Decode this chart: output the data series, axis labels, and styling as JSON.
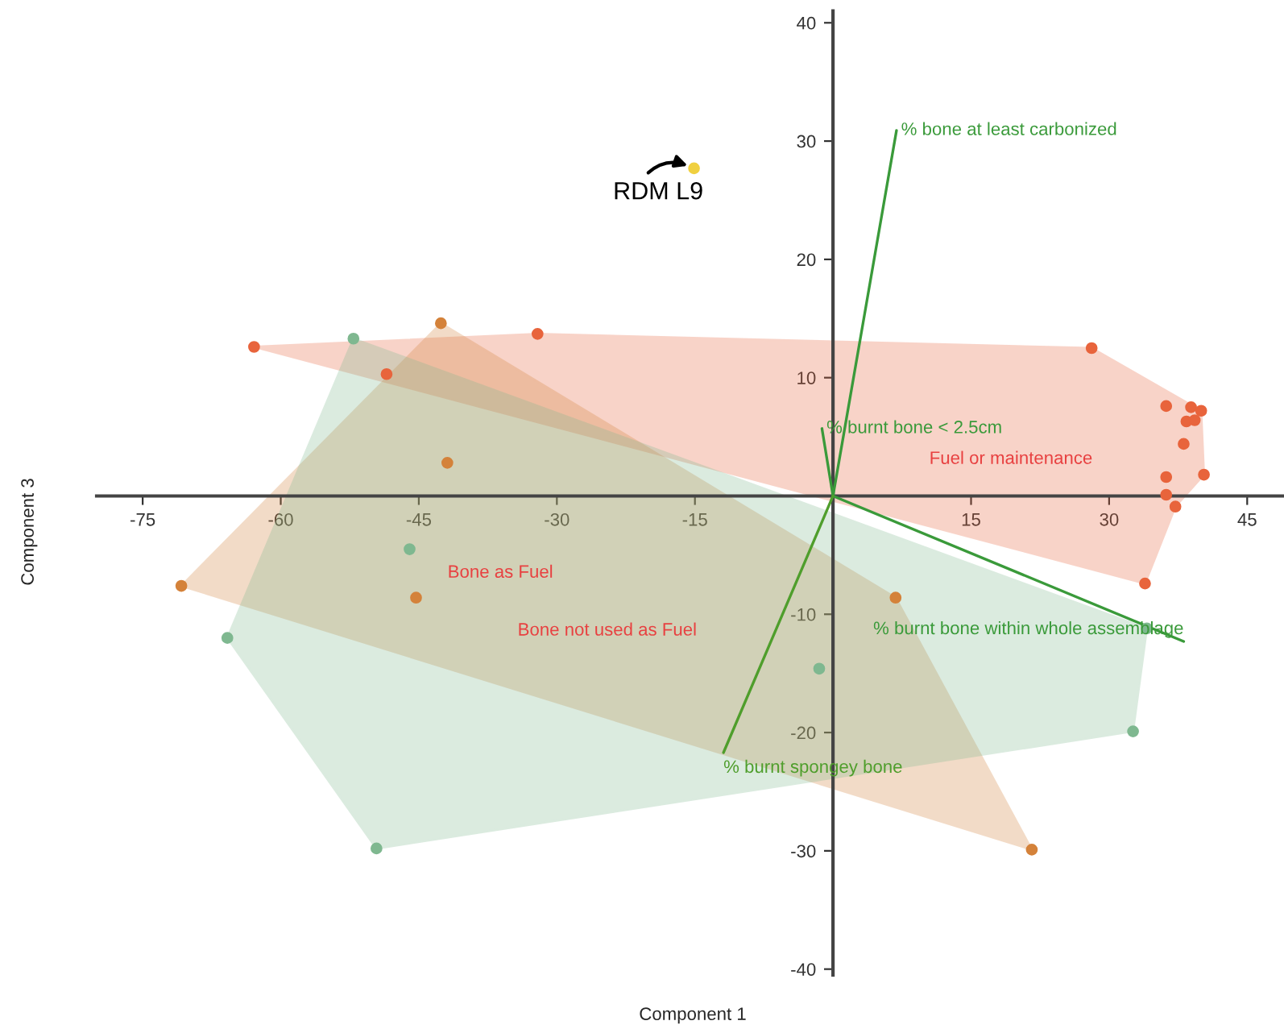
{
  "chart_data": {
    "type": "scatter",
    "xlabel": "Component 1",
    "ylabel": "Component 3",
    "xlim": [
      -80,
      49
    ],
    "ylim": [
      -40.5,
      41
    ],
    "xticks": [
      -75,
      -60,
      -45,
      -30,
      -15,
      15,
      30,
      45
    ],
    "yticks": [
      -40,
      -30,
      -20,
      -10,
      10,
      20,
      30,
      40
    ],
    "grid": false,
    "legend": false,
    "series": [
      {
        "type": "area",
        "color": "#e8643c",
        "x": [
          -62.9,
          -32.1,
          28.1,
          40.0,
          40.3,
          37.2,
          33.9
        ],
        "values": [
          12.6,
          13.7,
          12.5,
          7.2,
          1.8,
          -0.9,
          -7.4
        ]
      },
      {
        "type": "area",
        "color": "#d4823a",
        "x": [
          -42.6,
          6.8,
          21.6,
          -70.8
        ],
        "values": [
          14.6,
          -8.6,
          -29.9,
          -7.6
        ]
      },
      {
        "type": "area",
        "color": "#7fb890",
        "x": [
          -52.1,
          34.1,
          32.6,
          -49.6,
          -65.8
        ],
        "values": [
          13.3,
          -11.2,
          -19.9,
          -29.8,
          -12.0
        ]
      },
      {
        "marker": "circle",
        "color": "#e8643c",
        "x": [
          -62.9,
          -32.1,
          -48.5,
          28.1,
          36.2,
          38.9,
          40.0,
          38.4,
          39.3,
          38.1,
          40.3,
          36.2,
          36.2,
          37.2,
          33.9
        ],
        "values": [
          12.6,
          13.7,
          10.3,
          12.5,
          7.6,
          7.5,
          7.2,
          6.3,
          6.4,
          4.4,
          1.8,
          1.6,
          0.1,
          -0.9,
          -7.4
        ]
      },
      {
        "marker": "circle",
        "color": "#d4823a",
        "x": [
          -42.6,
          -41.9,
          -70.8,
          -45.3,
          6.8,
          21.6
        ],
        "values": [
          14.6,
          2.8,
          -7.6,
          -8.6,
          -8.6,
          -29.9
        ]
      },
      {
        "marker": "circle",
        "color": "#7fb890",
        "x": [
          -52.1,
          -46.0,
          -65.8,
          -49.6,
          -1.5,
          32.6,
          34.1
        ],
        "values": [
          13.3,
          -4.5,
          -12.0,
          -29.8,
          -14.6,
          -19.9,
          -11.2
        ]
      },
      {
        "marker": "circle",
        "color": "#f0d040",
        "x": [
          -15.1
        ],
        "values": [
          27.7
        ]
      },
      {
        "type": "line",
        "name": "% bone at least carbonized",
        "color": "#3a9a3a",
        "x": [
          0,
          6.9
        ],
        "values": [
          0,
          30.9
        ]
      },
      {
        "type": "line",
        "name": "% burnt bone < 2.5cm",
        "color": "#3a9a3a",
        "x": [
          0,
          -1.2
        ],
        "values": [
          0,
          5.7
        ]
      },
      {
        "type": "line",
        "name": "% burnt bone within whole assemblage",
        "color": "#3a9a3a",
        "x": [
          0,
          38.1
        ],
        "values": [
          0,
          -12.3
        ]
      },
      {
        "type": "line",
        "name": "% burnt spongey bone",
        "color": "#4f9e2c",
        "x": [
          0,
          -11.9
        ],
        "values": [
          0,
          -21.7
        ]
      }
    ],
    "line_style": "solid",
    "annotations": [
      {
        "text": "RDM L9",
        "x": -15.1,
        "y": 27.7
      },
      "Fuel or maintenance",
      "Bone as Fuel",
      "Bone not used as Fuel"
    ]
  }
}
